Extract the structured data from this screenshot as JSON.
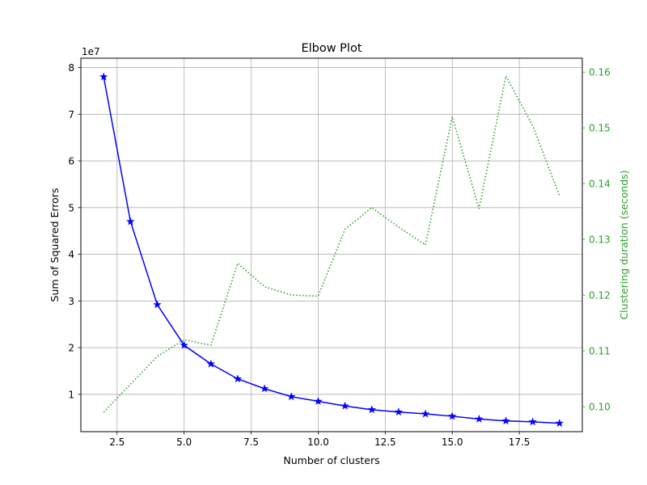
{
  "chart_data": {
    "type": "line",
    "title": "Elbow Plot",
    "xlabel": "Number of clusters",
    "ylabel": "Sum of Squared Errors",
    "y2label": "Clustering duration (seconds)",
    "y_offset_label": "1e7",
    "xlim": [
      1.15,
      19.85
    ],
    "ylim": [
      0.2,
      8.2
    ],
    "y2lim": [
      0.0955,
      0.1625
    ],
    "grid": true,
    "x_ticks": [
      2.5,
      5.0,
      7.5,
      10.0,
      12.5,
      15.0,
      17.5
    ],
    "x_tick_labels": [
      "2.5",
      "5.0",
      "7.5",
      "10.0",
      "12.5",
      "15.0",
      "17.5"
    ],
    "y_ticks": [
      1,
      2,
      3,
      4,
      5,
      6,
      7,
      8
    ],
    "y_tick_labels": [
      "1",
      "2",
      "3",
      "4",
      "5",
      "6",
      "7",
      "8"
    ],
    "y2_ticks": [
      0.1,
      0.11,
      0.12,
      0.13,
      0.14,
      0.15,
      0.16
    ],
    "y2_tick_labels": [
      "0.10",
      "0.11",
      "0.12",
      "0.13",
      "0.14",
      "0.15",
      "0.16"
    ],
    "x": [
      2,
      3,
      4,
      5,
      6,
      7,
      8,
      9,
      10,
      11,
      12,
      13,
      14,
      15,
      16,
      17,
      18,
      19
    ],
    "series": [
      {
        "axis": "left",
        "color": "#0000ff",
        "line_style": "solid",
        "marker": "star",
        "values": [
          7.8,
          4.7,
          2.92,
          2.05,
          1.65,
          1.33,
          1.12,
          0.95,
          0.85,
          0.75,
          0.67,
          0.62,
          0.58,
          0.53,
          0.47,
          0.43,
          0.41,
          0.38
        ]
      },
      {
        "axis": "right",
        "color": "#2ca02c",
        "line_style": "dotted",
        "marker": "none",
        "values": [
          0.099,
          0.104,
          0.109,
          0.112,
          0.111,
          0.1257,
          0.1215,
          0.12,
          0.1198,
          0.1318,
          0.1357,
          0.1322,
          0.129,
          0.152,
          0.1355,
          0.1593,
          0.1504,
          0.1378
        ]
      }
    ]
  }
}
